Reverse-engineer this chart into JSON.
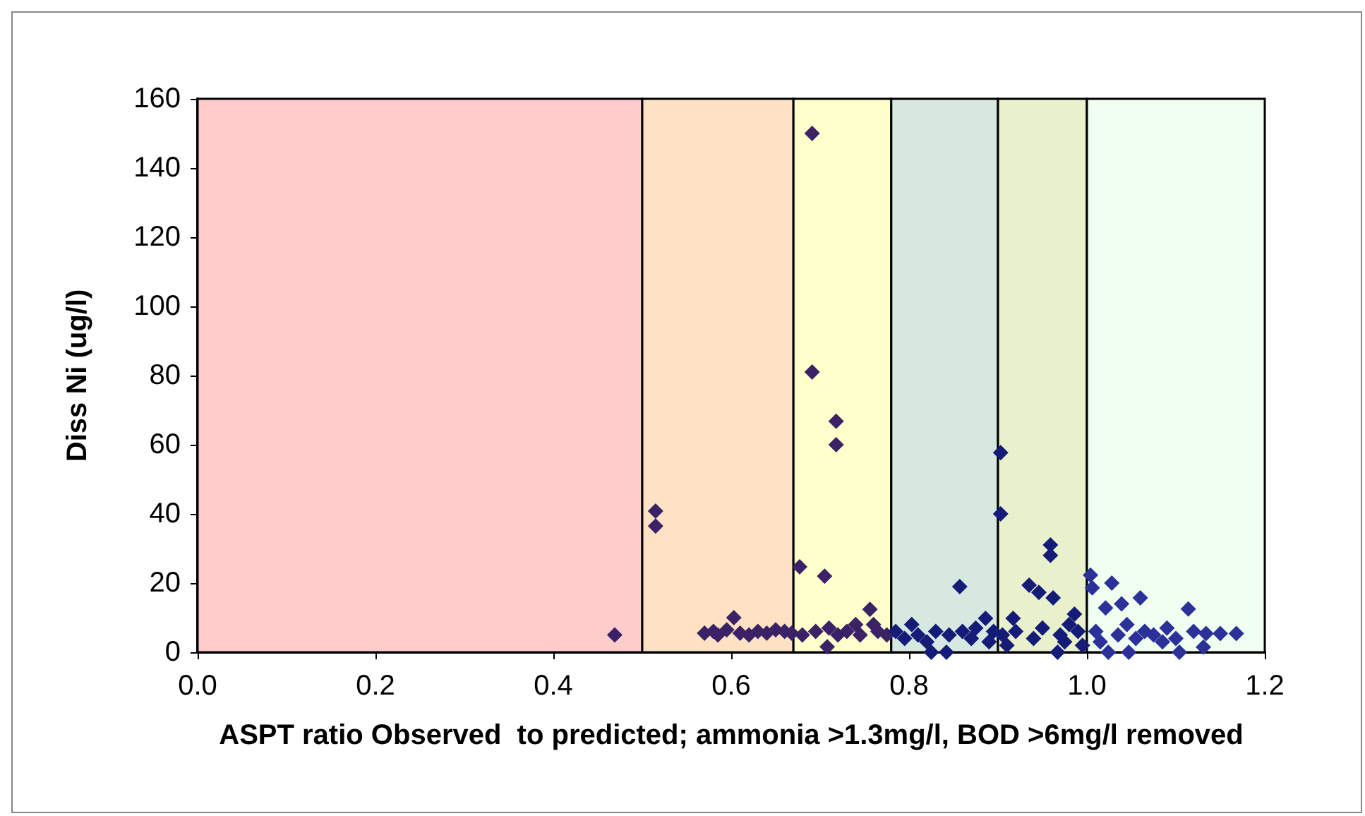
{
  "chart_data": {
    "type": "scatter",
    "xlabel": "ASPT ratio Observed  to predicted; ammonia >1.3mg/l, BOD >6mg/l removed",
    "ylabel": "Diss Ni (ug/l)",
    "xlim": [
      0,
      1.2
    ],
    "xticks": [
      {
        "value": 0,
        "label": "0.0"
      },
      {
        "value": 0.2,
        "label": "0.2"
      },
      {
        "value": 0.4,
        "label": "0.4"
      },
      {
        "value": 0.6,
        "label": "0.6"
      },
      {
        "value": 0.8,
        "label": "0.8"
      },
      {
        "value": 1,
        "label": "1.0"
      },
      {
        "value": 1.2,
        "label": "1.2"
      }
    ],
    "ylim": [
      0,
      160
    ],
    "yticks": [
      0,
      20,
      40,
      60,
      80,
      100,
      120,
      140,
      160
    ],
    "grid": false,
    "marker": "diamond",
    "bands": [
      {
        "axis": "x",
        "from": 0,
        "to": 0.5,
        "color": "#ffcccc"
      },
      {
        "axis": "x",
        "from": 0.5,
        "to": 0.67,
        "color": "#ffe2c4"
      },
      {
        "axis": "x",
        "from": 0.67,
        "to": 0.78,
        "color": "#ffffcc"
      },
      {
        "axis": "x",
        "from": 0.78,
        "to": 0.9,
        "color": "#d6e8e0"
      },
      {
        "axis": "x",
        "from": 0.9,
        "to": 1,
        "color": "#e8f0cc"
      },
      {
        "axis": "x",
        "from": 1,
        "to": 1.2,
        "color": "#f0fff0"
      }
    ],
    "series": [
      {
        "color": "#3b2266",
        "x": [
          0.469,
          0.515,
          0.515,
          0.57,
          0.58,
          0.585,
          0.595,
          0.603,
          0.61,
          0.62,
          0.63,
          0.64,
          0.65,
          0.66,
          0.668,
          0.677,
          0.68,
          0.691,
          0.691,
          0.695,
          0.705,
          0.708,
          0.71,
          0.718,
          0.718,
          0.72,
          0.73,
          0.74,
          0.745,
          0.756,
          0.76,
          0.765,
          0.775
        ],
        "values": [
          5,
          40.8,
          36.5,
          5.5,
          6,
          5,
          6.5,
          10,
          5.5,
          5,
          6,
          5.5,
          6.5,
          6,
          5.5,
          24.7,
          5,
          150,
          81,
          6,
          22,
          1.6,
          7,
          66.8,
          60,
          5,
          6,
          8,
          5,
          12.4,
          8,
          6,
          5
        ]
      },
      {
        "color": "#141c78",
        "x": [
          0.785,
          0.795,
          0.803,
          0.81,
          0.82,
          0.825,
          0.83,
          0.842,
          0.845,
          0.857,
          0.86,
          0.87,
          0.875,
          0.886,
          0.89,
          0.895,
          0.903,
          0.903,
          0.905,
          0.91,
          0.917,
          0.92,
          0.935,
          0.94,
          0.946,
          0.95,
          0.959,
          0.959,
          0.962,
          0.967,
          0.97,
          0.975,
          0.98,
          0.986,
          0.99,
          0.995
        ],
        "values": [
          6,
          4,
          8,
          5,
          3,
          0,
          6,
          0,
          5,
          19,
          6,
          4,
          7,
          9.8,
          3,
          6,
          57.7,
          40,
          5,
          2,
          9.8,
          6,
          19.4,
          4,
          17.3,
          7,
          31,
          28,
          15.7,
          0,
          5,
          3,
          8,
          11,
          6,
          2
        ]
      },
      {
        "color": "#2b3199",
        "x": [
          1.004,
          1.006,
          1.01,
          1.015,
          1.021,
          1.024,
          1.028,
          1.035,
          1.039,
          1.045,
          1.047,
          1.055,
          1.06,
          1.065,
          1.075,
          1.085,
          1.09,
          1.1,
          1.104,
          1.114,
          1.12,
          1.131,
          1.134,
          1.15,
          1.168
        ],
        "values": [
          22.3,
          18.6,
          6,
          3,
          12.8,
          0,
          20,
          5,
          14,
          8,
          0,
          4,
          15.7,
          6,
          5,
          3,
          7,
          4,
          0,
          12.5,
          6,
          1.5,
          5.4,
          5.4,
          5.4
        ]
      }
    ]
  }
}
